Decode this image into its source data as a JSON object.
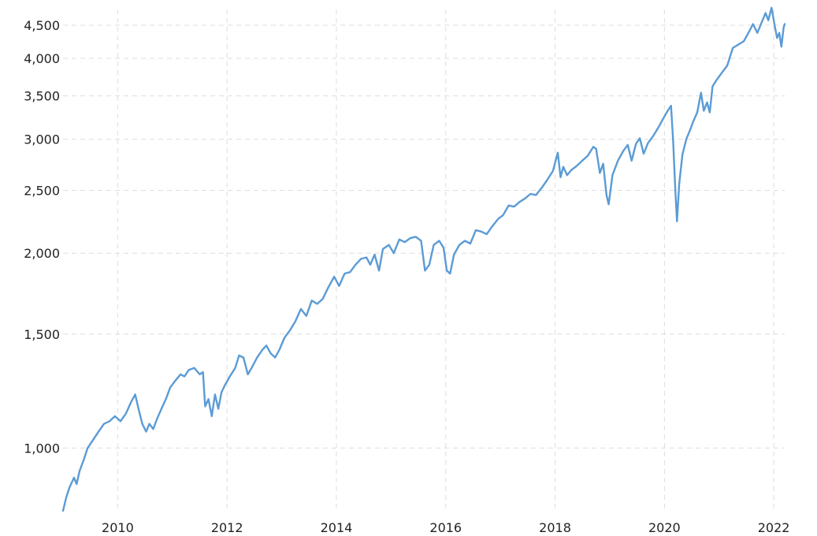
{
  "chart_data": {
    "type": "line",
    "title": "",
    "xlabel": "",
    "ylabel": "",
    "y_scale": "log",
    "grid": true,
    "legend": "none",
    "xlim": [
      2009.0,
      2022.2
    ],
    "ylim": [
      800,
      4760
    ],
    "x_ticks": [
      {
        "value": 2010,
        "label": "2010"
      },
      {
        "value": 2012,
        "label": "2012"
      },
      {
        "value": 2014,
        "label": "2014"
      },
      {
        "value": 2016,
        "label": "2016"
      },
      {
        "value": 2018,
        "label": "2018"
      },
      {
        "value": 2020,
        "label": "2020"
      },
      {
        "value": 2022,
        "label": "2022"
      }
    ],
    "y_ticks": [
      {
        "value": 1000,
        "label": "1,000"
      },
      {
        "value": 1500,
        "label": "1,500"
      },
      {
        "value": 2000,
        "label": "2,000"
      },
      {
        "value": 2500,
        "label": "2,500"
      },
      {
        "value": 3000,
        "label": "3,000"
      },
      {
        "value": 3500,
        "label": "3,500"
      },
      {
        "value": 4000,
        "label": "4,000"
      },
      {
        "value": 4500,
        "label": "4,500"
      }
    ],
    "series": [
      {
        "color": "#5b9bd5",
        "points": [
          [
            2009.0,
            800
          ],
          [
            2009.06,
            840
          ],
          [
            2009.12,
            870
          ],
          [
            2009.2,
            900
          ],
          [
            2009.25,
            880
          ],
          [
            2009.3,
            920
          ],
          [
            2009.38,
            960
          ],
          [
            2009.45,
            1000
          ],
          [
            2009.55,
            1030
          ],
          [
            2009.65,
            1060
          ],
          [
            2009.75,
            1090
          ],
          [
            2009.85,
            1100
          ],
          [
            2009.95,
            1120
          ],
          [
            2010.05,
            1100
          ],
          [
            2010.15,
            1130
          ],
          [
            2010.25,
            1180
          ],
          [
            2010.32,
            1210
          ],
          [
            2010.38,
            1150
          ],
          [
            2010.45,
            1090
          ],
          [
            2010.52,
            1060
          ],
          [
            2010.58,
            1090
          ],
          [
            2010.65,
            1070
          ],
          [
            2010.72,
            1110
          ],
          [
            2010.8,
            1150
          ],
          [
            2010.88,
            1190
          ],
          [
            2010.96,
            1240
          ],
          [
            2011.05,
            1270
          ],
          [
            2011.15,
            1300
          ],
          [
            2011.22,
            1290
          ],
          [
            2011.3,
            1320
          ],
          [
            2011.4,
            1330
          ],
          [
            2011.5,
            1300
          ],
          [
            2011.56,
            1310
          ],
          [
            2011.6,
            1160
          ],
          [
            2011.66,
            1190
          ],
          [
            2011.72,
            1120
          ],
          [
            2011.78,
            1210
          ],
          [
            2011.84,
            1150
          ],
          [
            2011.9,
            1220
          ],
          [
            2011.96,
            1250
          ],
          [
            2012.05,
            1290
          ],
          [
            2012.15,
            1330
          ],
          [
            2012.22,
            1390
          ],
          [
            2012.3,
            1380
          ],
          [
            2012.38,
            1300
          ],
          [
            2012.45,
            1330
          ],
          [
            2012.55,
            1380
          ],
          [
            2012.65,
            1420
          ],
          [
            2012.72,
            1440
          ],
          [
            2012.8,
            1400
          ],
          [
            2012.88,
            1380
          ],
          [
            2012.96,
            1420
          ],
          [
            2013.05,
            1480
          ],
          [
            2013.15,
            1520
          ],
          [
            2013.25,
            1570
          ],
          [
            2013.35,
            1640
          ],
          [
            2013.45,
            1600
          ],
          [
            2013.55,
            1690
          ],
          [
            2013.65,
            1670
          ],
          [
            2013.75,
            1700
          ],
          [
            2013.85,
            1770
          ],
          [
            2013.96,
            1840
          ],
          [
            2014.05,
            1780
          ],
          [
            2014.15,
            1860
          ],
          [
            2014.25,
            1870
          ],
          [
            2014.35,
            1920
          ],
          [
            2014.45,
            1960
          ],
          [
            2014.55,
            1970
          ],
          [
            2014.62,
            1920
          ],
          [
            2014.7,
            1990
          ],
          [
            2014.78,
            1880
          ],
          [
            2014.85,
            2030
          ],
          [
            2014.96,
            2060
          ],
          [
            2015.05,
            2000
          ],
          [
            2015.15,
            2100
          ],
          [
            2015.25,
            2080
          ],
          [
            2015.35,
            2110
          ],
          [
            2015.45,
            2120
          ],
          [
            2015.55,
            2090
          ],
          [
            2015.62,
            1880
          ],
          [
            2015.7,
            1920
          ],
          [
            2015.78,
            2060
          ],
          [
            2015.88,
            2090
          ],
          [
            2015.96,
            2040
          ],
          [
            2016.02,
            1880
          ],
          [
            2016.08,
            1860
          ],
          [
            2016.15,
            1990
          ],
          [
            2016.25,
            2060
          ],
          [
            2016.35,
            2090
          ],
          [
            2016.45,
            2070
          ],
          [
            2016.55,
            2170
          ],
          [
            2016.65,
            2160
          ],
          [
            2016.75,
            2140
          ],
          [
            2016.85,
            2200
          ],
          [
            2016.96,
            2260
          ],
          [
            2017.05,
            2290
          ],
          [
            2017.15,
            2370
          ],
          [
            2017.25,
            2360
          ],
          [
            2017.35,
            2400
          ],
          [
            2017.45,
            2430
          ],
          [
            2017.55,
            2470
          ],
          [
            2017.65,
            2460
          ],
          [
            2017.75,
            2520
          ],
          [
            2017.85,
            2590
          ],
          [
            2017.96,
            2680
          ],
          [
            2018.05,
            2860
          ],
          [
            2018.1,
            2620
          ],
          [
            2018.15,
            2720
          ],
          [
            2018.22,
            2640
          ],
          [
            2018.3,
            2690
          ],
          [
            2018.4,
            2730
          ],
          [
            2018.5,
            2780
          ],
          [
            2018.6,
            2830
          ],
          [
            2018.7,
            2920
          ],
          [
            2018.75,
            2900
          ],
          [
            2018.82,
            2660
          ],
          [
            2018.88,
            2750
          ],
          [
            2018.94,
            2460
          ],
          [
            2018.98,
            2380
          ],
          [
            2019.05,
            2640
          ],
          [
            2019.15,
            2780
          ],
          [
            2019.25,
            2880
          ],
          [
            2019.33,
            2940
          ],
          [
            2019.4,
            2780
          ],
          [
            2019.48,
            2950
          ],
          [
            2019.55,
            3010
          ],
          [
            2019.62,
            2850
          ],
          [
            2019.7,
            2960
          ],
          [
            2019.8,
            3040
          ],
          [
            2019.9,
            3140
          ],
          [
            2019.98,
            3230
          ],
          [
            2020.06,
            3320
          ],
          [
            2020.12,
            3380
          ],
          [
            2020.16,
            2980
          ],
          [
            2020.2,
            2500
          ],
          [
            2020.23,
            2240
          ],
          [
            2020.27,
            2560
          ],
          [
            2020.33,
            2840
          ],
          [
            2020.4,
            3000
          ],
          [
            2020.47,
            3100
          ],
          [
            2020.53,
            3200
          ],
          [
            2020.6,
            3300
          ],
          [
            2020.67,
            3540
          ],
          [
            2020.72,
            3320
          ],
          [
            2020.78,
            3420
          ],
          [
            2020.83,
            3300
          ],
          [
            2020.88,
            3620
          ],
          [
            2020.95,
            3700
          ],
          [
            2021.05,
            3800
          ],
          [
            2021.15,
            3900
          ],
          [
            2021.25,
            4150
          ],
          [
            2021.35,
            4200
          ],
          [
            2021.45,
            4250
          ],
          [
            2021.55,
            4400
          ],
          [
            2021.62,
            4520
          ],
          [
            2021.7,
            4380
          ],
          [
            2021.78,
            4550
          ],
          [
            2021.85,
            4700
          ],
          [
            2021.9,
            4580
          ],
          [
            2021.96,
            4790
          ],
          [
            2022.02,
            4480
          ],
          [
            2022.06,
            4300
          ],
          [
            2022.1,
            4380
          ],
          [
            2022.14,
            4170
          ],
          [
            2022.18,
            4460
          ],
          [
            2022.2,
            4520
          ]
        ]
      }
    ]
  }
}
